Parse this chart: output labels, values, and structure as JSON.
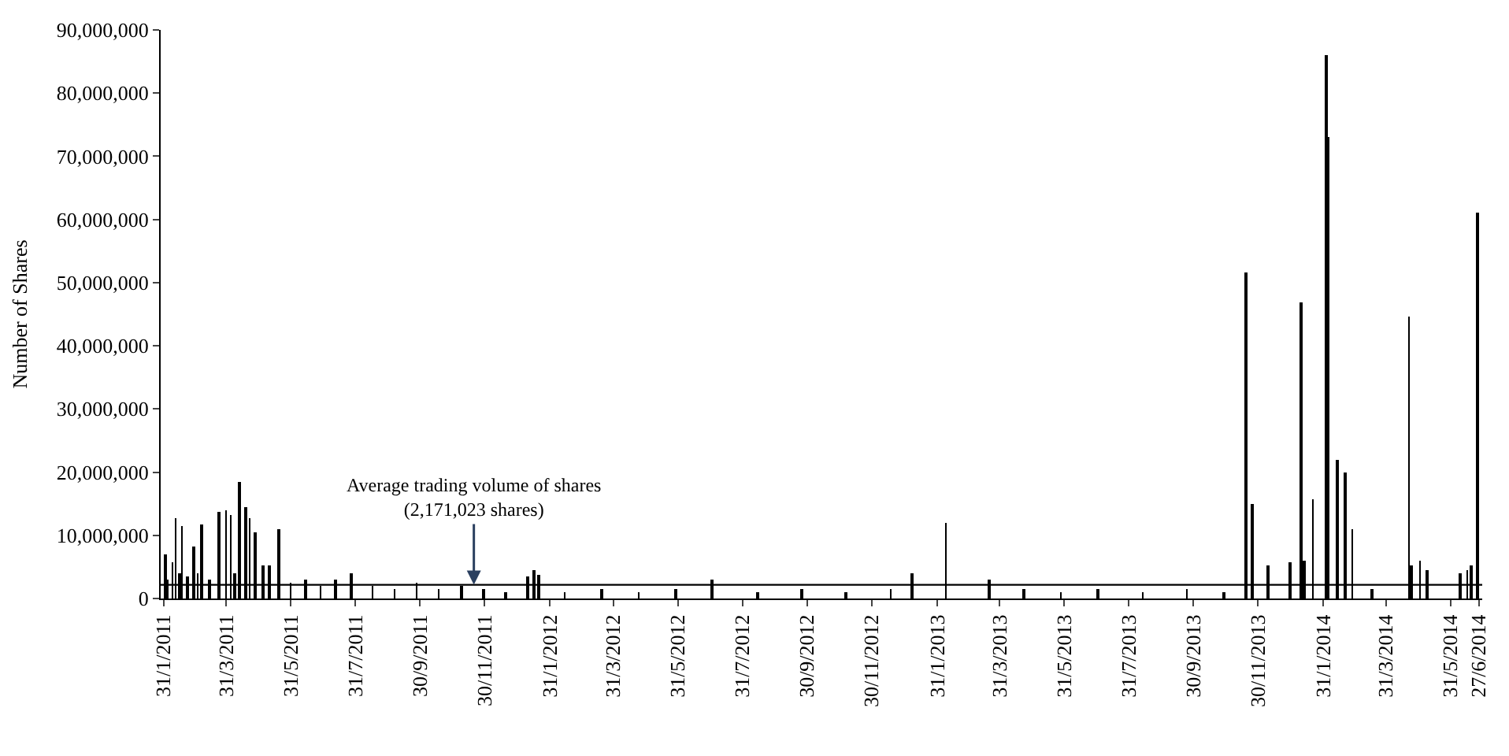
{
  "chart_data": {
    "type": "bar",
    "ylabel": "Number of Shares",
    "color": "#000000",
    "x": [
      "2011-02-01",
      "2011-02-03",
      "2011-02-08",
      "2011-02-11",
      "2011-02-15",
      "2011-02-17",
      "2011-02-22",
      "2011-02-28",
      "2011-03-04",
      "2011-03-08",
      "2011-03-15",
      "2011-03-24",
      "2011-03-31",
      "2011-04-04",
      "2011-04-08",
      "2011-04-12",
      "2011-04-18",
      "2011-04-22",
      "2011-04-27",
      "2011-05-05",
      "2011-05-11",
      "2011-05-20",
      "2011-05-31",
      "2011-06-14",
      "2011-06-28",
      "2011-07-12",
      "2011-07-27",
      "2011-08-16",
      "2011-09-06",
      "2011-09-27",
      "2011-10-18",
      "2011-11-08",
      "2011-11-29",
      "2011-12-20",
      "2012-01-10",
      "2012-01-16",
      "2012-01-20",
      "2012-02-14",
      "2012-03-20",
      "2012-04-24",
      "2012-05-29",
      "2012-07-02",
      "2012-08-14",
      "2012-09-25",
      "2012-11-06",
      "2012-12-18",
      "2013-01-07",
      "2013-02-08",
      "2013-03-21",
      "2013-04-23",
      "2013-05-28",
      "2013-07-02",
      "2013-08-13",
      "2013-09-24",
      "2013-10-29",
      "2013-11-19",
      "2013-11-25",
      "2013-12-10",
      "2013-12-30",
      "2014-01-10",
      "2014-01-13",
      "2014-01-21",
      "2014-02-03",
      "2014-02-05",
      "2014-02-13",
      "2014-02-20",
      "2014-02-27",
      "2014-03-18",
      "2014-04-22",
      "2014-04-24",
      "2014-05-02",
      "2014-05-09",
      "2014-06-09",
      "2014-06-16",
      "2014-06-20",
      "2014-06-26"
    ],
    "values": [
      7000000,
      3000000,
      5700000,
      12700000,
      4000000,
      11400000,
      3500000,
      8300000,
      4000000,
      11800000,
      3000000,
      13600000,
      14000000,
      13200000,
      4000000,
      18400000,
      14500000,
      12700000,
      10500000,
      5300000,
      5300000,
      11000000,
      2500000,
      3000000,
      2000000,
      3000000,
      4000000,
      2000000,
      1500000,
      2500000,
      1500000,
      2000000,
      1500000,
      1000000,
      3500000,
      4400000,
      3800000,
      1000000,
      1500000,
      1000000,
      1500000,
      3000000,
      1000000,
      1500000,
      1000000,
      1500000,
      4000000,
      12000000,
      3000000,
      1500000,
      1000000,
      1500000,
      1000000,
      1500000,
      1000000,
      51500000,
      14900000,
      5300000,
      5700000,
      46900000,
      6000000,
      15800000,
      86000000,
      73000000,
      21900000,
      19900000,
      11000000,
      1500000,
      44700000,
      5300000,
      5900000,
      4400000,
      4000000,
      4400000,
      5300000,
      61000000
    ],
    "ylim": [
      0,
      90000000
    ],
    "yticks": [
      {
        "value": 0,
        "label": "0"
      },
      {
        "value": 10000000,
        "label": "10,000,000"
      },
      {
        "value": 20000000,
        "label": "20,000,000"
      },
      {
        "value": 30000000,
        "label": "30,000,000"
      },
      {
        "value": 40000000,
        "label": "40,000,000"
      },
      {
        "value": 50000000,
        "label": "50,000,000"
      },
      {
        "value": 60000000,
        "label": "60,000,000"
      },
      {
        "value": 70000000,
        "label": "70,000,000"
      },
      {
        "value": 80000000,
        "label": "80,000,000"
      },
      {
        "value": 90000000,
        "label": "90,000,000"
      }
    ],
    "xlim": [
      "2011-01-28",
      "2014-06-30"
    ],
    "xticks": [
      {
        "value": "2011-01-31",
        "label": "31/1/2011"
      },
      {
        "value": "2011-03-31",
        "label": "31/3/2011"
      },
      {
        "value": "2011-05-31",
        "label": "31/5/2011"
      },
      {
        "value": "2011-07-31",
        "label": "31/7/2011"
      },
      {
        "value": "2011-09-30",
        "label": "30/9/2011"
      },
      {
        "value": "2011-11-30",
        "label": "30/11/2011"
      },
      {
        "value": "2012-01-31",
        "label": "31/1/2012"
      },
      {
        "value": "2012-03-31",
        "label": "31/3/2012"
      },
      {
        "value": "2012-05-31",
        "label": "31/5/2012"
      },
      {
        "value": "2012-07-31",
        "label": "31/7/2012"
      },
      {
        "value": "2012-09-30",
        "label": "30/9/2012"
      },
      {
        "value": "2012-11-30",
        "label": "30/11/2012"
      },
      {
        "value": "2013-01-31",
        "label": "31/1/2013"
      },
      {
        "value": "2013-03-31",
        "label": "31/3/2013"
      },
      {
        "value": "2013-05-31",
        "label": "31/5/2013"
      },
      {
        "value": "2013-07-31",
        "label": "31/7/2013"
      },
      {
        "value": "2013-09-30",
        "label": "30/9/2013"
      },
      {
        "value": "2013-11-30",
        "label": "30/11/2013"
      },
      {
        "value": "2014-01-31",
        "label": "31/1/2014"
      },
      {
        "value": "2014-03-31",
        "label": "31/3/2014"
      },
      {
        "value": "2014-05-31",
        "label": "31/5/2014"
      },
      {
        "value": "2014-06-27",
        "label": "27/6/2014"
      }
    ],
    "ref_lines": [
      {
        "axis": "y",
        "value": 2171023,
        "color": "#000000"
      }
    ],
    "annotations": [
      {
        "text": "Average trading volume of shares\n(2,171,023 shares)",
        "x": "2011-11-20",
        "y": 2171023
      }
    ],
    "marker": "none"
  }
}
